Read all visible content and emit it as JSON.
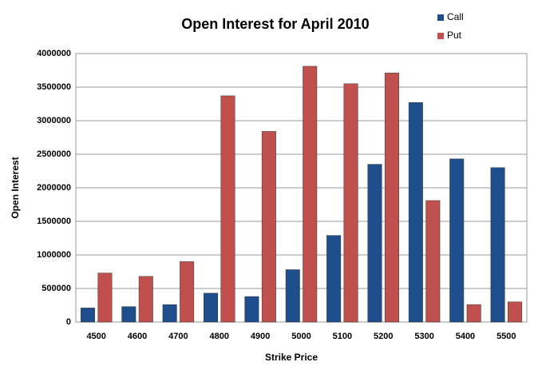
{
  "chart_data": {
    "type": "bar",
    "title": "Open Interest for April 2010",
    "x_label": "Strike Price",
    "y_label": "Open Interest",
    "categories": [
      "4500",
      "4600",
      "4700",
      "4800",
      "4900",
      "5000",
      "5100",
      "5200",
      "5300",
      "5400",
      "5500"
    ],
    "series": [
      {
        "name": "Call",
        "color": "#1f4e8c",
        "values": [
          210000,
          230000,
          260000,
          430000,
          380000,
          780000,
          1290000,
          2350000,
          3270000,
          2430000,
          2300000
        ]
      },
      {
        "name": "Put",
        "color": "#c0504d",
        "values": [
          730000,
          680000,
          900000,
          3370000,
          2840000,
          3810000,
          3550000,
          3710000,
          1810000,
          260000,
          300000
        ]
      }
    ],
    "ylim": [
      0,
      4000000
    ],
    "yticks": [
      0,
      500000,
      1000000,
      1500000,
      2000000,
      2500000,
      3000000,
      3500000,
      4000000
    ],
    "grid": true
  }
}
